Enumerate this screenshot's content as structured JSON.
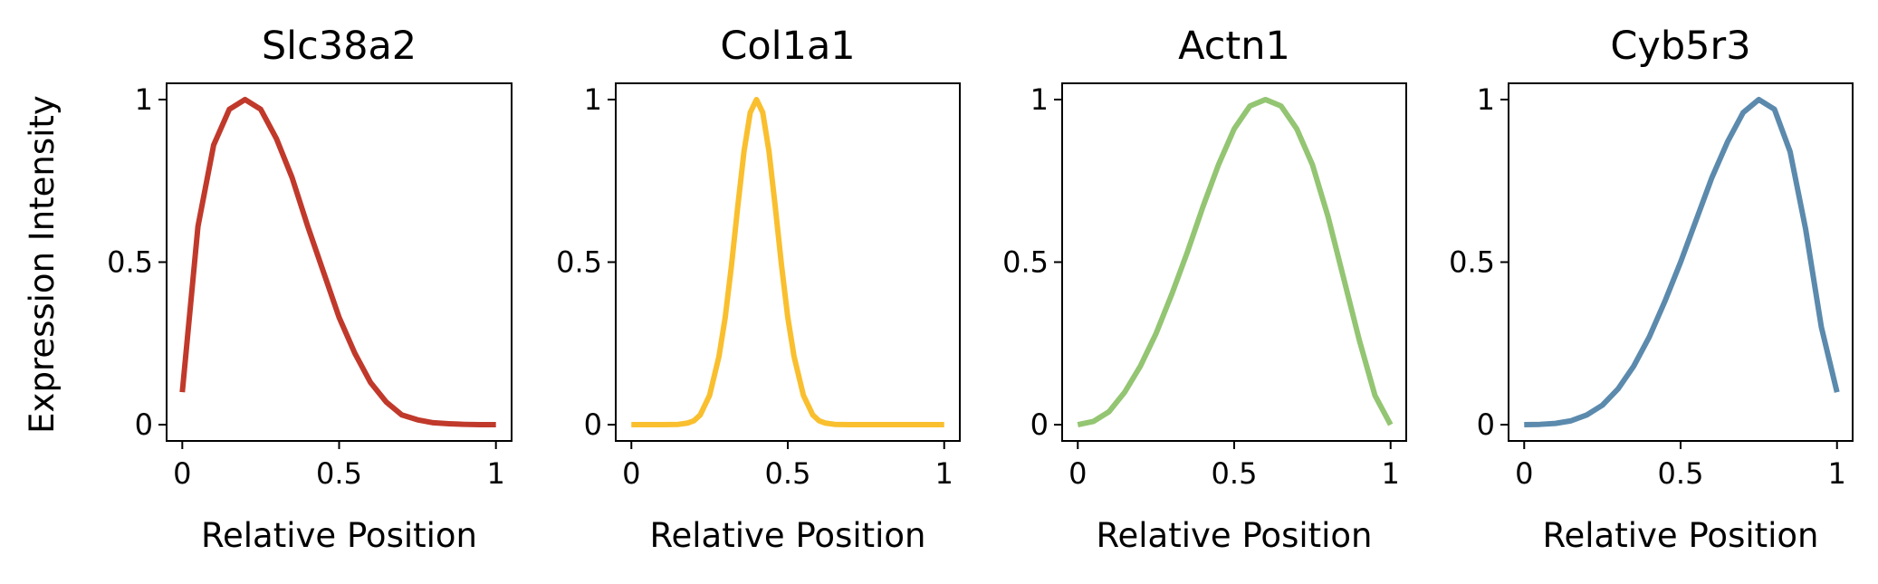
{
  "figure": {
    "ylabel": "Expression Intensity"
  },
  "chart_data": [
    {
      "type": "line",
      "title": "Slc38a2",
      "xlabel": "Relative Position",
      "ylabel": "Expression Intensity",
      "xlim": [
        -0.05,
        1.05
      ],
      "ylim": [
        -0.05,
        1.05
      ],
      "xticks": [
        0,
        0.5,
        1
      ],
      "xtick_labels": [
        "0",
        "0.5",
        "1"
      ],
      "yticks": [
        0,
        0.5,
        1
      ],
      "ytick_labels": [
        "0",
        "0.5",
        "1"
      ],
      "grid": false,
      "color": "#c0392b",
      "x": [
        0,
        0.05,
        0.1,
        0.15,
        0.2,
        0.25,
        0.3,
        0.35,
        0.4,
        0.45,
        0.5,
        0.55,
        0.6,
        0.65,
        0.7,
        0.75,
        0.8,
        0.85,
        0.9,
        0.95,
        1
      ],
      "y": [
        0.1,
        0.61,
        0.86,
        0.97,
        1.0,
        0.97,
        0.88,
        0.76,
        0.61,
        0.47,
        0.33,
        0.22,
        0.13,
        0.07,
        0.03,
        0.015,
        0.006,
        0.003,
        0.001,
        0,
        0
      ]
    },
    {
      "type": "line",
      "title": "Col1a1",
      "xlabel": "Relative Position",
      "ylabel": "",
      "xlim": [
        -0.05,
        1.05
      ],
      "ylim": [
        -0.05,
        1.05
      ],
      "xticks": [
        0,
        0.5,
        1
      ],
      "xtick_labels": [
        "0",
        "0.5",
        "1"
      ],
      "yticks": [
        0,
        0.5,
        1
      ],
      "ytick_labels": [
        "0",
        "0.5",
        "1"
      ],
      "grid": false,
      "color": "#f9bf2e",
      "x": [
        0,
        0.05,
        0.1,
        0.15,
        0.18,
        0.2,
        0.22,
        0.25,
        0.28,
        0.3,
        0.32,
        0.34,
        0.36,
        0.38,
        0.4,
        0.42,
        0.44,
        0.46,
        0.48,
        0.5,
        0.52,
        0.55,
        0.58,
        0.6,
        0.62,
        0.65,
        0.7,
        0.8,
        0.9,
        1
      ],
      "y": [
        0,
        0,
        0,
        0.001,
        0.005,
        0.012,
        0.03,
        0.09,
        0.21,
        0.33,
        0.49,
        0.67,
        0.84,
        0.96,
        1.0,
        0.96,
        0.84,
        0.67,
        0.49,
        0.33,
        0.21,
        0.09,
        0.03,
        0.012,
        0.005,
        0.001,
        0,
        0,
        0,
        0
      ]
    },
    {
      "type": "line",
      "title": "Actn1",
      "xlabel": "Relative Position",
      "ylabel": "",
      "xlim": [
        -0.05,
        1.05
      ],
      "ylim": [
        -0.05,
        1.05
      ],
      "xticks": [
        0,
        0.5,
        1
      ],
      "xtick_labels": [
        "0",
        "0.5",
        "1"
      ],
      "yticks": [
        0,
        0.5,
        1
      ],
      "ytick_labels": [
        "0",
        "0.5",
        "1"
      ],
      "grid": false,
      "color": "#93c572",
      "x": [
        0,
        0.05,
        0.1,
        0.15,
        0.2,
        0.25,
        0.3,
        0.35,
        0.4,
        0.45,
        0.5,
        0.55,
        0.6,
        0.65,
        0.7,
        0.75,
        0.8,
        0.85,
        0.9,
        0.95,
        1
      ],
      "y": [
        0,
        0.01,
        0.04,
        0.1,
        0.18,
        0.28,
        0.4,
        0.53,
        0.67,
        0.8,
        0.91,
        0.98,
        1.0,
        0.98,
        0.91,
        0.8,
        0.64,
        0.45,
        0.26,
        0.09,
        0
      ]
    },
    {
      "type": "line",
      "title": "Cyb5r3",
      "xlabel": "Relative Position",
      "ylabel": "",
      "xlim": [
        -0.05,
        1.05
      ],
      "ylim": [
        -0.05,
        1.05
      ],
      "xticks": [
        0,
        0.5,
        1
      ],
      "xtick_labels": [
        "0",
        "0.5",
        "1"
      ],
      "yticks": [
        0,
        0.5,
        1
      ],
      "ytick_labels": [
        "0",
        "0.5",
        "1"
      ],
      "grid": false,
      "color": "#5b8aad",
      "x": [
        0,
        0.05,
        0.1,
        0.15,
        0.2,
        0.25,
        0.3,
        0.35,
        0.4,
        0.45,
        0.5,
        0.55,
        0.6,
        0.65,
        0.7,
        0.75,
        0.8,
        0.85,
        0.9,
        0.95,
        1
      ],
      "y": [
        0,
        0.001,
        0.004,
        0.012,
        0.03,
        0.06,
        0.11,
        0.18,
        0.27,
        0.38,
        0.5,
        0.63,
        0.76,
        0.87,
        0.96,
        1.0,
        0.97,
        0.84,
        0.6,
        0.3,
        0.1
      ]
    }
  ]
}
